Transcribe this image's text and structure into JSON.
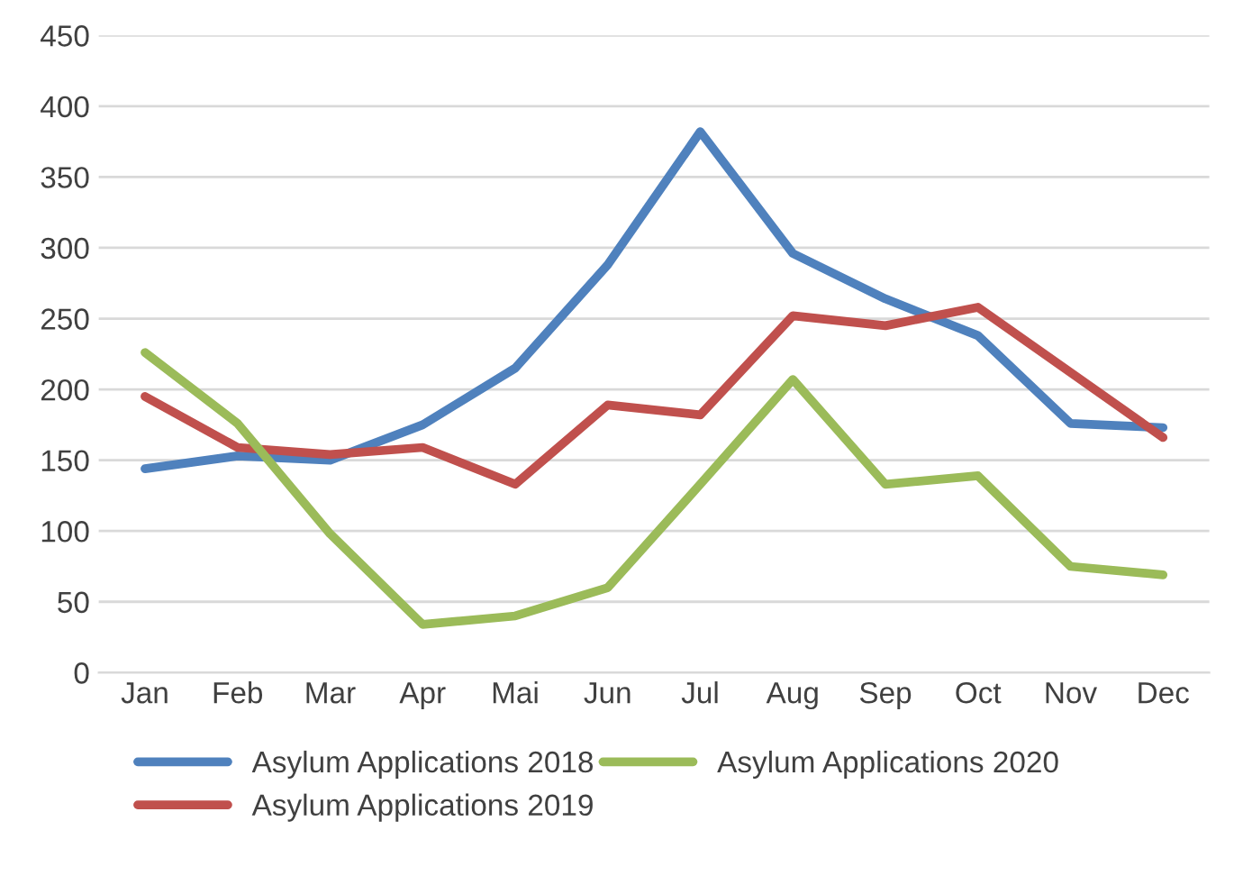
{
  "chart_data": {
    "type": "line",
    "categories": [
      "Jan",
      "Feb",
      "Mar",
      "Apr",
      "Mai",
      "Jun",
      "Jul",
      "Aug",
      "Sep",
      "Oct",
      "Nov",
      "Dec"
    ],
    "series": [
      {
        "name": "Asylum Applications 2018",
        "color": "#4f81bd",
        "values": [
          144,
          153,
          150,
          175,
          215,
          288,
          382,
          296,
          264,
          238,
          176,
          173
        ]
      },
      {
        "name": "Asylum Applications 2019",
        "color": "#c0504d",
        "values": [
          195,
          159,
          154,
          159,
          133,
          189,
          182,
          252,
          245,
          258,
          212,
          166
        ]
      },
      {
        "name": "Asylum Applications 2020",
        "color": "#9bbb59",
        "values": [
          226,
          176,
          98,
          34,
          40,
          60,
          133,
          207,
          133,
          139,
          75,
          69
        ]
      }
    ],
    "ylim": [
      0,
      450
    ],
    "yticks": [
      0,
      50,
      100,
      150,
      200,
      250,
      300,
      350,
      400,
      450
    ],
    "grid": "y",
    "legend": "bottom",
    "marker": "none",
    "line_style": "solid"
  }
}
